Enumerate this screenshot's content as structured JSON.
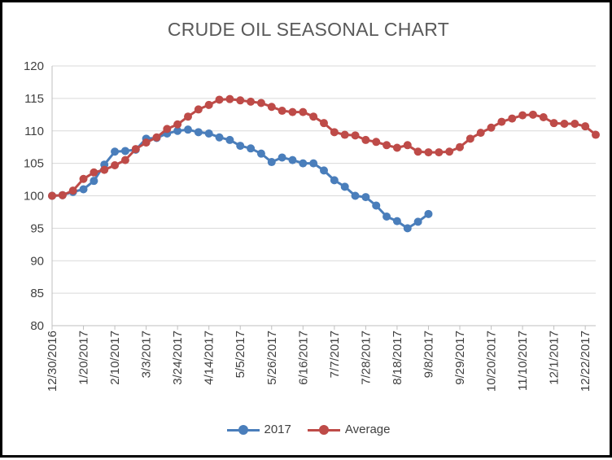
{
  "chart_data": {
    "type": "line",
    "title": "CRUDE OIL SEASONAL CHART",
    "xlabel": "",
    "ylabel": "",
    "ylim": [
      80,
      120
    ],
    "y_ticks": [
      "80",
      "85",
      "90",
      "95",
      "100",
      "105",
      "110",
      "115",
      "120"
    ],
    "x_tick_labels": [
      "12/30/2016",
      "1/20/2017",
      "2/10/2017",
      "3/3/2017",
      "3/24/2017",
      "4/14/2017",
      "5/5/2017",
      "5/26/2017",
      "6/16/2017",
      "7/7/2017",
      "7/28/2017",
      "8/18/2017",
      "9/8/2017",
      "9/29/2017",
      "10/20/2017",
      "11/10/2017",
      "12/1/2017",
      "12/22/2017"
    ],
    "grid": "horizontal",
    "legend_position": "bottom",
    "series": [
      {
        "name": "2017",
        "color": "#4a7ebb",
        "values": [
          100,
          100.1,
          100.6,
          101,
          102.3,
          104.8,
          106.8,
          106.9,
          107.1,
          108.8,
          108.9,
          109.6,
          110,
          110.2,
          109.8,
          109.6,
          109,
          108.6,
          107.7,
          107.3,
          106.5,
          105.2,
          105.9,
          105.5,
          105,
          105,
          103.9,
          102.4,
          101.4,
          100,
          99.8,
          98.5,
          96.8,
          96.1,
          95,
          96,
          97.2
        ]
      },
      {
        "name": "Average",
        "color": "#be4b48",
        "values": [
          100,
          100.1,
          100.8,
          102.6,
          103.6,
          104,
          104.7,
          105.5,
          107.2,
          108.2,
          109,
          110.3,
          111,
          112.2,
          113.3,
          114,
          114.8,
          114.9,
          114.7,
          114.5,
          114.3,
          113.7,
          113.1,
          112.9,
          112.9,
          112.2,
          111.2,
          109.8,
          109.4,
          109.3,
          108.6,
          108.3,
          107.8,
          107.4,
          107.8,
          106.8,
          106.7,
          106.7,
          106.8,
          107.5,
          108.8,
          109.7,
          110.5,
          111.4,
          111.9,
          112.4,
          112.5,
          112.1,
          111.2,
          111.1,
          111.1,
          110.7,
          109.4
        ]
      }
    ]
  }
}
